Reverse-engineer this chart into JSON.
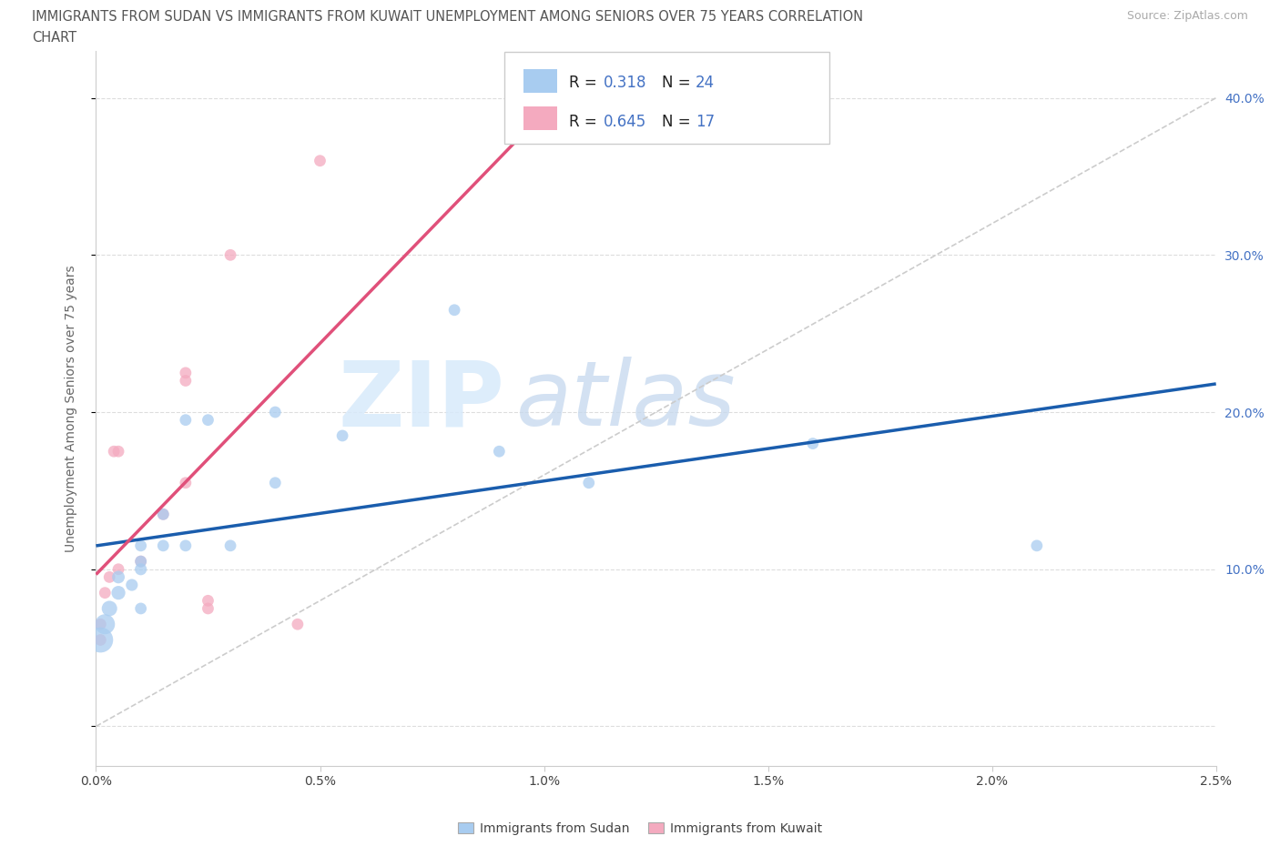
{
  "title_line1": "IMMIGRANTS FROM SUDAN VS IMMIGRANTS FROM KUWAIT UNEMPLOYMENT AMONG SENIORS OVER 75 YEARS CORRELATION",
  "title_line2": "CHART",
  "source": "Source: ZipAtlas.com",
  "ylabel": "Unemployment Among Seniors over 75 years",
  "sudan_color": "#A8CCF0",
  "kuwait_color": "#F4AABF",
  "sudan_line_color": "#1A5DAD",
  "kuwait_line_color": "#E0507A",
  "R_sudan": 0.318,
  "N_sudan": 24,
  "R_kuwait": 0.645,
  "N_kuwait": 17,
  "xlim": [
    0.0,
    0.025
  ],
  "ylim": [
    -0.025,
    0.43
  ],
  "ytick_vals": [
    0.0,
    0.1,
    0.2,
    0.3,
    0.4
  ],
  "ytick_labels": [
    "",
    "10.0%",
    "20.0%",
    "30.0%",
    "40.0%"
  ],
  "xtick_vals": [
    0.0,
    0.005,
    0.01,
    0.015,
    0.02,
    0.025
  ],
  "xtick_labels": [
    "0.0%",
    "0.5%",
    "1.0%",
    "1.5%",
    "2.0%",
    "2.5%"
  ],
  "sudan_x": [
    0.0001,
    0.0002,
    0.0003,
    0.0005,
    0.0005,
    0.0008,
    0.001,
    0.001,
    0.001,
    0.001,
    0.0015,
    0.0015,
    0.002,
    0.002,
    0.0025,
    0.003,
    0.004,
    0.004,
    0.0055,
    0.008,
    0.009,
    0.011,
    0.016,
    0.021
  ],
  "sudan_y": [
    0.055,
    0.065,
    0.075,
    0.085,
    0.095,
    0.09,
    0.1,
    0.105,
    0.115,
    0.075,
    0.115,
    0.135,
    0.115,
    0.195,
    0.195,
    0.115,
    0.2,
    0.155,
    0.185,
    0.265,
    0.175,
    0.155,
    0.18,
    0.115
  ],
  "sudan_sizes": [
    400,
    250,
    150,
    120,
    100,
    90,
    90,
    85,
    85,
    85,
    85,
    85,
    85,
    85,
    85,
    85,
    85,
    85,
    85,
    85,
    85,
    85,
    85,
    85
  ],
  "kuwait_x": [
    0.0001,
    0.0001,
    0.0002,
    0.0003,
    0.0004,
    0.0005,
    0.0005,
    0.001,
    0.0015,
    0.002,
    0.002,
    0.002,
    0.0025,
    0.0025,
    0.003,
    0.0045,
    0.005
  ],
  "kuwait_y": [
    0.055,
    0.065,
    0.085,
    0.095,
    0.175,
    0.175,
    0.1,
    0.105,
    0.135,
    0.155,
    0.225,
    0.22,
    0.075,
    0.08,
    0.3,
    0.065,
    0.36
  ],
  "kuwait_sizes": [
    85,
    85,
    85,
    85,
    85,
    85,
    85,
    85,
    85,
    85,
    85,
    85,
    85,
    85,
    85,
    85,
    85
  ],
  "legend_sudan_label": "Immigrants from Sudan",
  "legend_kuwait_label": "Immigrants from Kuwait"
}
